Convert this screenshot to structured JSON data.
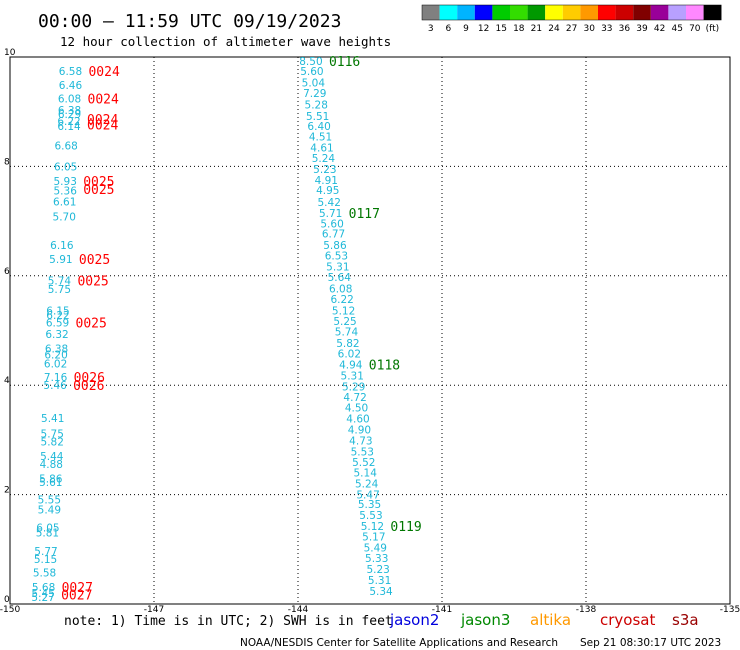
{
  "header": {
    "title": "00:00 – 11:59 UTC 09/19/2023",
    "subtitle": "12 hour collection of altimeter wave heights"
  },
  "colorbar": {
    "colors": [
      "#808080",
      "#00ffff",
      "#00b4ff",
      "#0000ff",
      "#00cc00",
      "#33dd00",
      "#009900",
      "#ffff00",
      "#ffcc00",
      "#ff9900",
      "#ff0000",
      "#cc0000",
      "#800000",
      "#990099",
      "#b8a0ff",
      "#ff88ff",
      "#000000"
    ],
    "labels": [
      "3",
      "6",
      "9",
      "12",
      "15",
      "18",
      "21",
      "24",
      "27",
      "30",
      "33",
      "36",
      "39",
      "42",
      "45",
      "70",
      "(ft)"
    ]
  },
  "footer": {
    "note": "note: 1) Time is in UTC; 2) SWH is in feet",
    "credit": "NOAA/NESDIS Center for Satellite Applications and Research",
    "timestamp": "Sep 21 08:30:17 UTC 2023",
    "satellites": [
      {
        "name": "jason2",
        "color": "#0000dd"
      },
      {
        "name": "jason3",
        "color": "#008800"
      },
      {
        "name": "altika",
        "color": "#ff9900"
      },
      {
        "name": "cryosat",
        "color": "#cc0000"
      },
      {
        "name": "s3a",
        "color": "#990000"
      }
    ]
  },
  "chart_data": {
    "type": "scatter",
    "xlim": [
      -150,
      -135
    ],
    "ylim": [
      0,
      10
    ],
    "x_ticks": [
      "-150",
      "-147",
      "-144",
      "-141",
      "-138",
      "-135"
    ],
    "x_tick_values": [
      -150,
      -147,
      -144,
      -141,
      -138,
      -135
    ],
    "y_ticks": [
      "0",
      "2",
      "4",
      "6",
      "8",
      "10"
    ],
    "y_tick_values": [
      0,
      2,
      4,
      6,
      8,
      10
    ],
    "grid": true,
    "point_color": "#1fb8d8",
    "series": [
      {
        "points": [
          {
            "x": -148.74,
            "y": 9.74,
            "v": "6.58"
          },
          {
            "x": -148.74,
            "y": 9.49,
            "v": "6.46"
          },
          {
            "x": -148.76,
            "y": 9.24,
            "v": "6.08"
          },
          {
            "x": -148.76,
            "y": 9.03,
            "v": "6.38"
          },
          {
            "x": -148.76,
            "y": 8.96,
            "v": "6.29"
          },
          {
            "x": -148.77,
            "y": 8.83,
            "v": "6.22"
          },
          {
            "x": -148.77,
            "y": 8.74,
            "v": "6.14"
          },
          {
            "x": -148.83,
            "y": 8.38,
            "v": "6.68"
          },
          {
            "x": -148.84,
            "y": 8.0,
            "v": "6.05"
          },
          {
            "x": -148.85,
            "y": 7.73,
            "v": "5.93"
          },
          {
            "x": -148.85,
            "y": 7.56,
            "v": "5.36"
          },
          {
            "x": -148.86,
            "y": 7.36,
            "v": "6.61"
          },
          {
            "x": -148.87,
            "y": 7.08,
            "v": "5.70"
          },
          {
            "x": -148.92,
            "y": 6.56,
            "v": "6.16"
          },
          {
            "x": -148.94,
            "y": 6.31,
            "v": "5.91"
          },
          {
            "x": -148.97,
            "y": 5.91,
            "v": "5.74"
          },
          {
            "x": -148.97,
            "y": 5.76,
            "v": "5.75"
          },
          {
            "x": -149.0,
            "y": 5.37,
            "v": "6.15"
          },
          {
            "x": -149.0,
            "y": 5.28,
            "v": "6.22"
          },
          {
            "x": -149.01,
            "y": 5.15,
            "v": "6.59"
          },
          {
            "x": -149.02,
            "y": 4.94,
            "v": "6.32"
          },
          {
            "x": -149.03,
            "y": 4.67,
            "v": "6.38"
          },
          {
            "x": -149.04,
            "y": 4.56,
            "v": "6.20"
          },
          {
            "x": -149.05,
            "y": 4.4,
            "v": "6.02"
          },
          {
            "x": -149.05,
            "y": 4.15,
            "v": "7.16"
          },
          {
            "x": -149.06,
            "y": 4.0,
            "v": "5.46"
          },
          {
            "x": -149.11,
            "y": 3.4,
            "v": "5.41"
          },
          {
            "x": -149.12,
            "y": 3.12,
            "v": "5.75"
          },
          {
            "x": -149.12,
            "y": 2.97,
            "v": "5.82"
          },
          {
            "x": -149.13,
            "y": 2.71,
            "v": "5.44"
          },
          {
            "x": -149.14,
            "y": 2.56,
            "v": "4.88"
          },
          {
            "x": -149.15,
            "y": 2.29,
            "v": "5.86"
          },
          {
            "x": -149.15,
            "y": 2.23,
            "v": "5.61"
          },
          {
            "x": -149.18,
            "y": 1.91,
            "v": "5.55"
          },
          {
            "x": -149.18,
            "y": 1.73,
            "v": "5.49"
          },
          {
            "x": -149.21,
            "y": 1.4,
            "v": "6.05"
          },
          {
            "x": -149.22,
            "y": 1.31,
            "v": "5.81"
          },
          {
            "x": -149.25,
            "y": 0.97,
            "v": "5.77"
          },
          {
            "x": -149.26,
            "y": 0.82,
            "v": "5.15"
          },
          {
            "x": -149.28,
            "y": 0.58,
            "v": "5.58"
          },
          {
            "x": -149.3,
            "y": 0.31,
            "v": "5.68"
          },
          {
            "x": -149.31,
            "y": 0.2,
            "v": "5.45"
          },
          {
            "x": -149.31,
            "y": 0.13,
            "v": "5.27"
          }
        ],
        "time_labels": [
          {
            "x": -148.74,
            "y": 9.74,
            "t": "0024"
          },
          {
            "x": -148.76,
            "y": 9.24,
            "t": "0024"
          },
          {
            "x": -148.77,
            "y": 8.87,
            "t": "0024"
          },
          {
            "x": -148.77,
            "y": 8.77,
            "t": "0024"
          },
          {
            "x": -148.85,
            "y": 7.73,
            "t": "0025"
          },
          {
            "x": -148.85,
            "y": 7.59,
            "t": "0025"
          },
          {
            "x": -148.94,
            "y": 6.31,
            "t": "0025"
          },
          {
            "x": -148.97,
            "y": 5.91,
            "t": "0025"
          },
          {
            "x": -149.01,
            "y": 5.15,
            "t": "0025"
          },
          {
            "x": -149.05,
            "y": 4.15,
            "t": "0026"
          },
          {
            "x": -149.06,
            "y": 4.0,
            "t": "0026"
          },
          {
            "x": -149.3,
            "y": 0.31,
            "t": "0027"
          },
          {
            "x": -149.31,
            "y": 0.17,
            "t": "0027"
          }
        ],
        "time_color": "#ff0000"
      },
      {
        "points": [
          {
            "x": -143.73,
            "y": 9.93,
            "v": "8.50"
          },
          {
            "x": -143.71,
            "y": 9.74,
            "v": "5.60"
          },
          {
            "x": -143.68,
            "y": 9.53,
            "v": "5.04"
          },
          {
            "x": -143.65,
            "y": 9.34,
            "v": "7.29"
          },
          {
            "x": -143.62,
            "y": 9.13,
            "v": "5.28"
          },
          {
            "x": -143.59,
            "y": 8.92,
            "v": "5.51"
          },
          {
            "x": -143.56,
            "y": 8.74,
            "v": "6.40"
          },
          {
            "x": -143.53,
            "y": 8.55,
            "v": "4.51"
          },
          {
            "x": -143.5,
            "y": 8.35,
            "v": "4.61"
          },
          {
            "x": -143.47,
            "y": 8.15,
            "v": "5.24"
          },
          {
            "x": -143.44,
            "y": 7.95,
            "v": "5.23"
          },
          {
            "x": -143.41,
            "y": 7.75,
            "v": "4.91"
          },
          {
            "x": -143.38,
            "y": 7.57,
            "v": "4.95"
          },
          {
            "x": -143.35,
            "y": 7.35,
            "v": "5.42"
          },
          {
            "x": -143.32,
            "y": 7.15,
            "v": "5.71"
          },
          {
            "x": -143.29,
            "y": 6.96,
            "v": "5.60"
          },
          {
            "x": -143.26,
            "y": 6.77,
            "v": "6.77"
          },
          {
            "x": -143.23,
            "y": 6.56,
            "v": "5.86"
          },
          {
            "x": -143.2,
            "y": 6.37,
            "v": "6.53"
          },
          {
            "x": -143.17,
            "y": 6.17,
            "v": "5.31"
          },
          {
            "x": -143.14,
            "y": 5.98,
            "v": "5.64"
          },
          {
            "x": -143.11,
            "y": 5.77,
            "v": "6.08"
          },
          {
            "x": -143.08,
            "y": 5.58,
            "v": "6.22"
          },
          {
            "x": -143.05,
            "y": 5.37,
            "v": "5.12"
          },
          {
            "x": -143.02,
            "y": 5.17,
            "v": "5.25"
          },
          {
            "x": -142.99,
            "y": 4.98,
            "v": "5.74"
          },
          {
            "x": -142.96,
            "y": 4.77,
            "v": "5.82"
          },
          {
            "x": -142.93,
            "y": 4.58,
            "v": "6.02"
          },
          {
            "x": -142.9,
            "y": 4.38,
            "v": "4.94"
          },
          {
            "x": -142.87,
            "y": 4.18,
            "v": "5.31"
          },
          {
            "x": -142.84,
            "y": 3.98,
            "v": "5.29"
          },
          {
            "x": -142.81,
            "y": 3.78,
            "v": "4.72"
          },
          {
            "x": -142.78,
            "y": 3.59,
            "v": "4.50"
          },
          {
            "x": -142.75,
            "y": 3.39,
            "v": "4.60"
          },
          {
            "x": -142.72,
            "y": 3.19,
            "v": "4.90"
          },
          {
            "x": -142.69,
            "y": 2.99,
            "v": "4.73"
          },
          {
            "x": -142.66,
            "y": 2.79,
            "v": "5.53"
          },
          {
            "x": -142.63,
            "y": 2.6,
            "v": "5.52"
          },
          {
            "x": -142.6,
            "y": 2.4,
            "v": "5.14"
          },
          {
            "x": -142.57,
            "y": 2.2,
            "v": "5.24"
          },
          {
            "x": -142.54,
            "y": 2.0,
            "v": "5.47"
          },
          {
            "x": -142.51,
            "y": 1.83,
            "v": "5.35"
          },
          {
            "x": -142.48,
            "y": 1.63,
            "v": "5.53"
          },
          {
            "x": -142.45,
            "y": 1.43,
            "v": "5.12"
          },
          {
            "x": -142.42,
            "y": 1.23,
            "v": "5.17"
          },
          {
            "x": -142.39,
            "y": 1.03,
            "v": "5.49"
          },
          {
            "x": -142.36,
            "y": 0.84,
            "v": "5.33"
          },
          {
            "x": -142.33,
            "y": 0.64,
            "v": "5.23"
          },
          {
            "x": -142.3,
            "y": 0.44,
            "v": "5.31"
          },
          {
            "x": -142.27,
            "y": 0.24,
            "v": "5.34"
          }
        ],
        "time_labels": [
          {
            "x": -143.73,
            "y": 9.93,
            "t": "0116"
          },
          {
            "x": -143.32,
            "y": 7.15,
            "t": "0117"
          },
          {
            "x": -142.9,
            "y": 4.38,
            "t": "0118"
          },
          {
            "x": -142.45,
            "y": 1.43,
            "t": "0119"
          }
        ],
        "time_color": "#007700"
      }
    ]
  }
}
